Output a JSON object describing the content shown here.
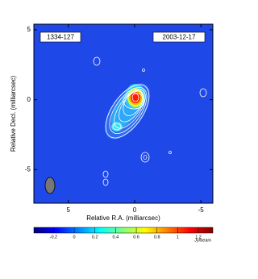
{
  "chart_data": {
    "type": "image",
    "source_label": "1334-127",
    "date_label": "2003-12-17",
    "x_label": "Relative R.A. (milliarcsec)",
    "y_label": "Relative Decl. (milliarcsec)",
    "xlim": [
      7.6,
      -5.9
    ],
    "xticks": [
      5,
      0,
      -5
    ],
    "ylim": [
      -7.4,
      5.4
    ],
    "yticks": [
      5,
      0,
      -5
    ],
    "clim": [
      -0.39,
      1.34
    ],
    "cticks": [
      -0.2,
      0,
      0.2,
      0.4,
      0.6,
      0.8,
      1,
      1.2
    ],
    "colorbar_label": "Jy/beam"
  }
}
